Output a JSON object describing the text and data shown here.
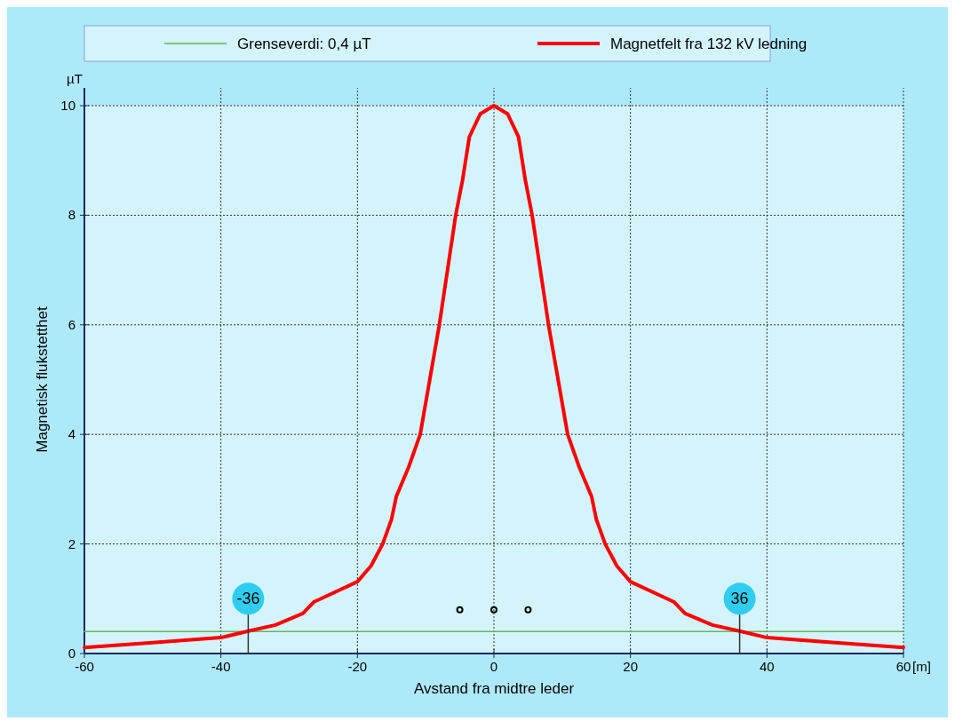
{
  "chart_data": {
    "type": "line",
    "xlabel": "Avstand fra midtre leder",
    "ylabel": "Magnetisk flukstetthet",
    "xlim": [
      -60,
      60
    ],
    "xticks": [
      -60,
      -40,
      -20,
      0,
      20,
      40,
      60
    ],
    "ylim": [
      0,
      10
    ],
    "yticks": [
      0,
      2,
      4,
      6,
      8,
      10
    ],
    "grid": true,
    "legend": "top",
    "series": [
      {
        "name": "Grenseverdi: 0,4 µT",
        "color": "#66b266",
        "x": [
          -60,
          60
        ],
        "values": [
          0.4,
          0.4
        ]
      },
      {
        "name": "Magnetfelt fra 132 kV ledning",
        "color": "#ff0000",
        "x": [
          -60,
          -50,
          -40,
          -36,
          -32,
          -28,
          -26.4,
          -20,
          -18,
          -16.3,
          -15,
          -14.3,
          -12.5,
          -10.8,
          -8,
          -5.6,
          -4.6,
          -3.6,
          -2,
          0,
          2,
          3.6,
          4.6,
          5.6,
          8,
          10.8,
          12.5,
          14.3,
          15,
          16.3,
          18,
          20,
          26.4,
          28,
          32,
          36,
          40,
          50,
          60
        ],
        "values": [
          0.11,
          0.2,
          0.29,
          0.41,
          0.52,
          0.73,
          0.94,
          1.31,
          1.6,
          2.0,
          2.45,
          2.87,
          3.4,
          4,
          6,
          8,
          8.64,
          9.43,
          9.85,
          10,
          9.85,
          9.43,
          8.64,
          8,
          6,
          4,
          3.4,
          2.87,
          2.45,
          2.0,
          1.6,
          1.31,
          0.94,
          0.73,
          0.52,
          0.41,
          0.29,
          0.2,
          0.11
        ]
      },
      {
        "type": "scatter",
        "color": "#000000",
        "x": [
          -5,
          0,
          5
        ],
        "values": [
          0.8,
          0.8,
          0.8
        ]
      }
    ],
    "annotations": [
      "µT",
      "[m]",
      {
        "text": "-36",
        "x": -36,
        "y": 0.4
      },
      {
        "text": "36",
        "x": 36,
        "y": 0.4
      }
    ]
  }
}
